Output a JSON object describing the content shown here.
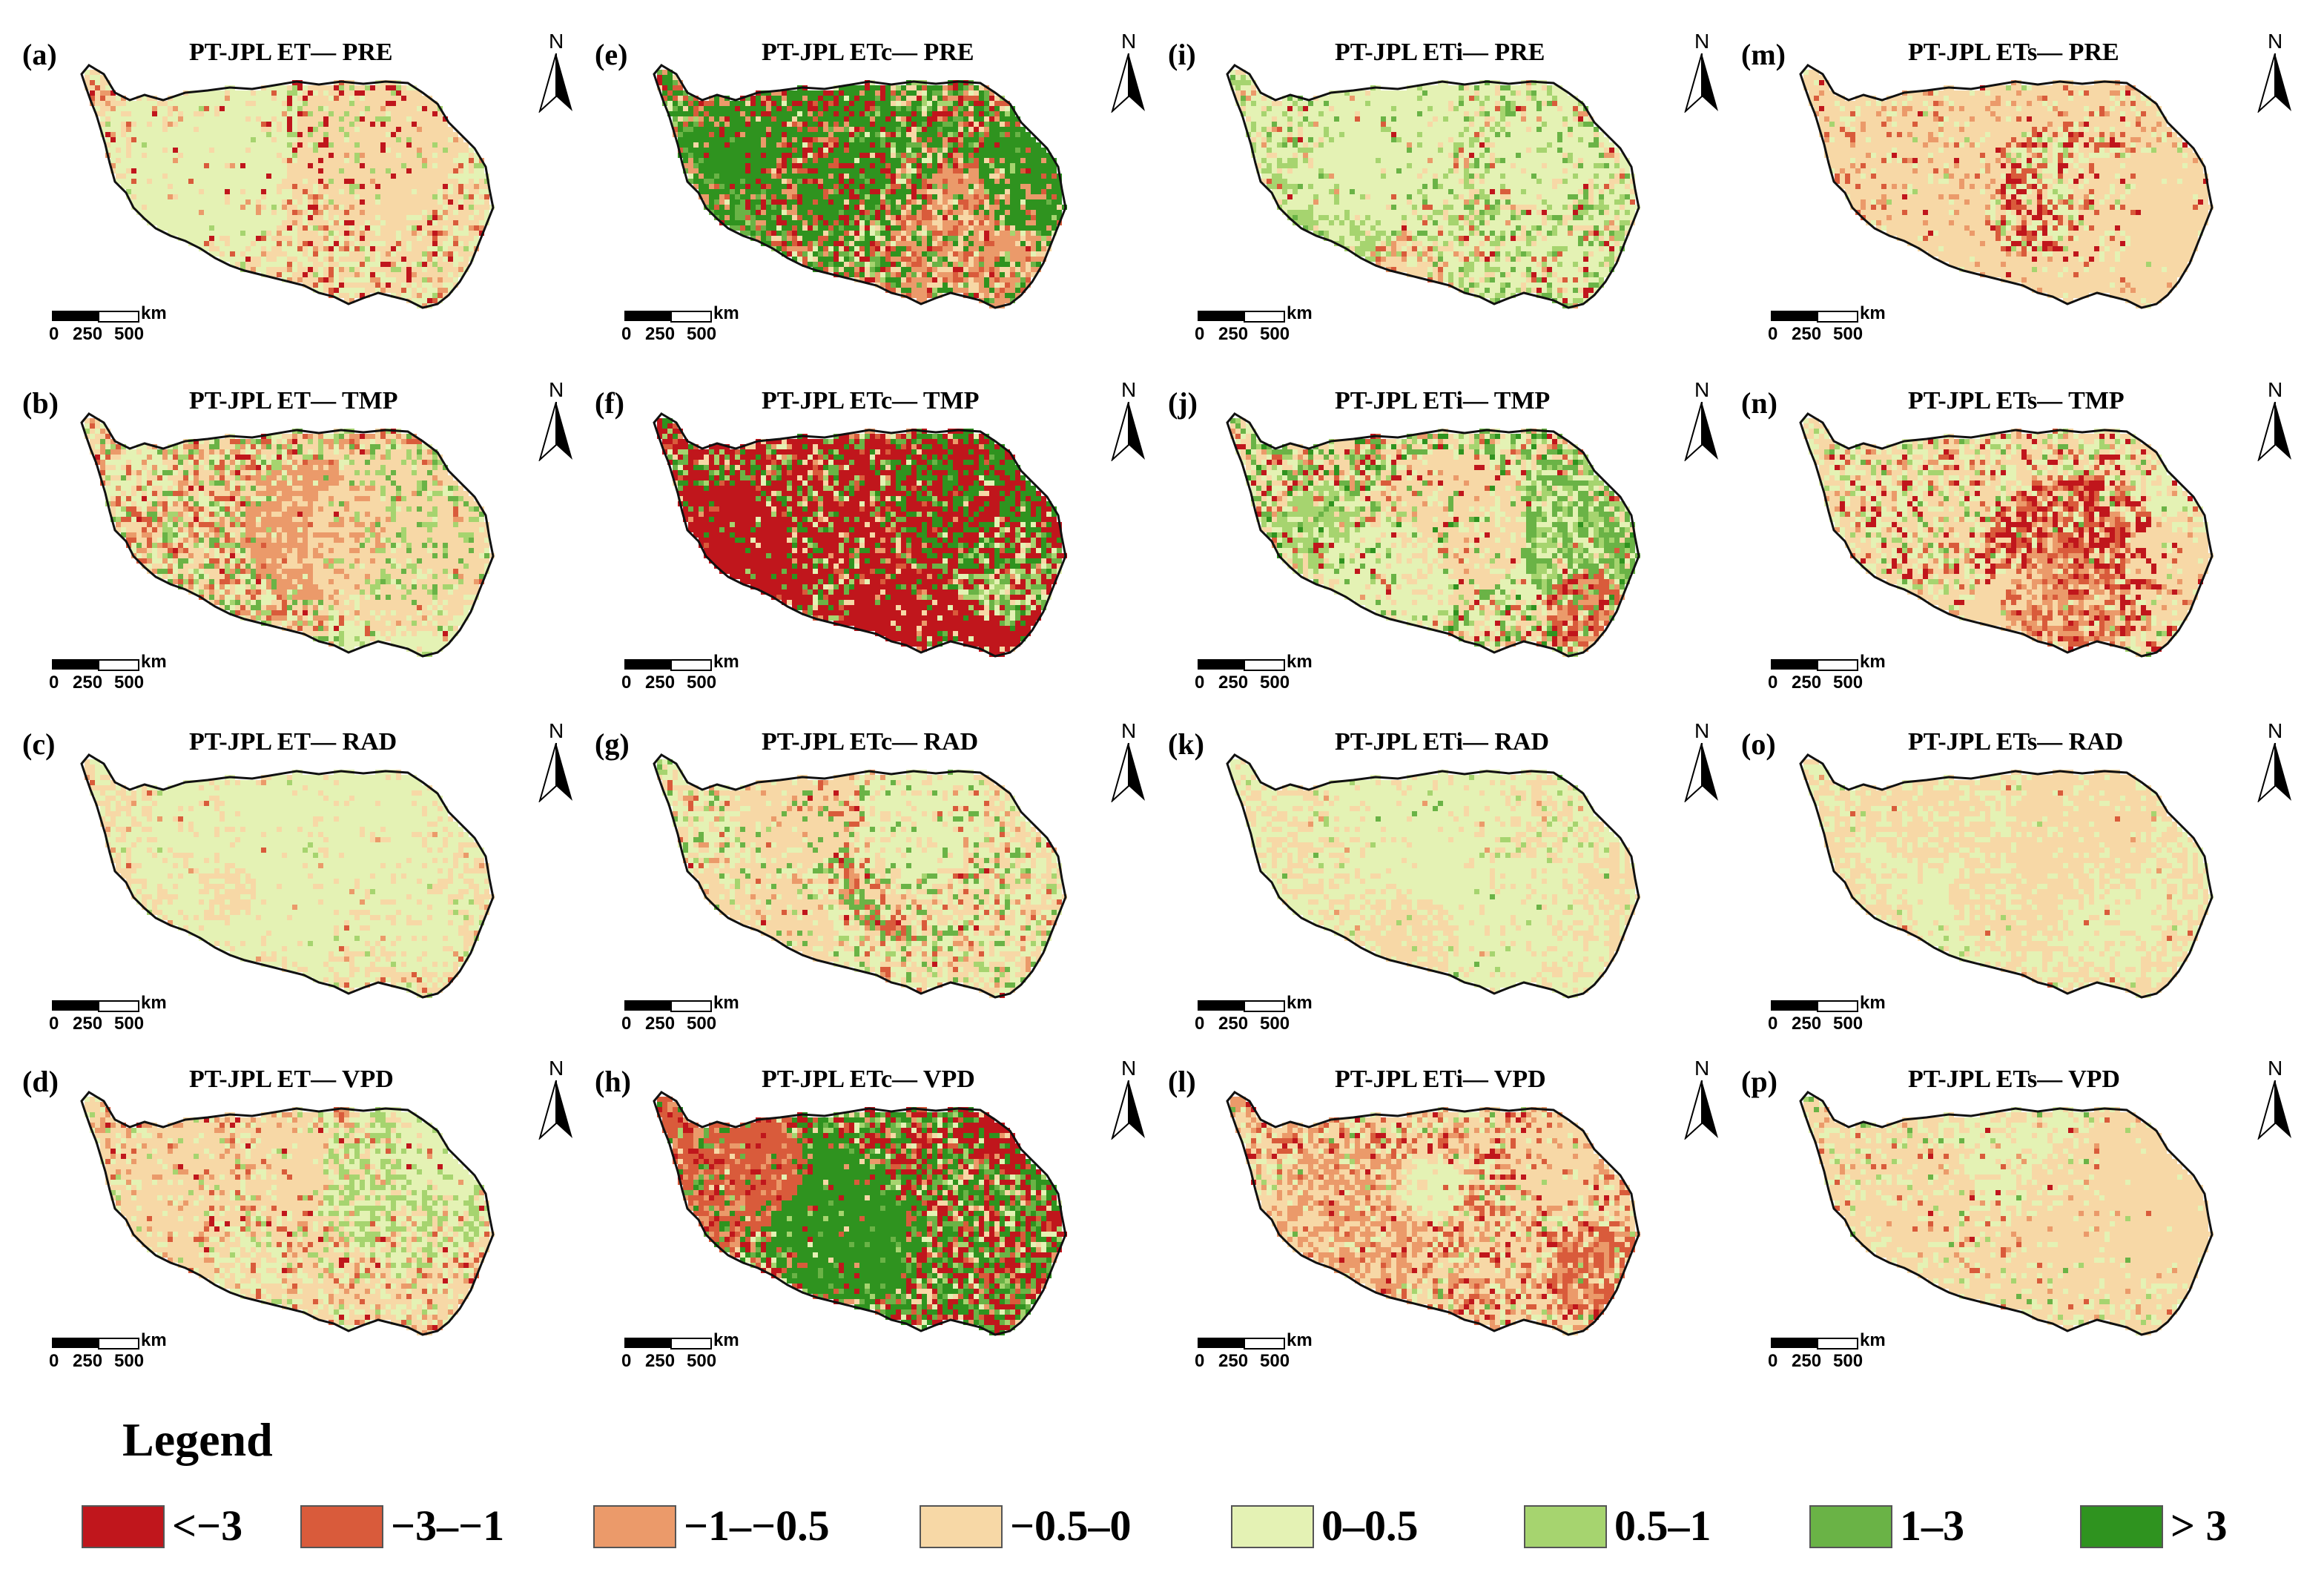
{
  "panels": [
    {
      "label": "(a)",
      "title": "PT-JPL ET— PRE",
      "scheme": [
        0.05,
        0.05,
        0.08,
        0.45,
        0.32,
        0.05,
        0.0,
        0.0
      ]
    },
    {
      "label": "(b)",
      "title": "PT-JPL ET— TMP",
      "scheme": [
        0.03,
        0.12,
        0.18,
        0.3,
        0.17,
        0.1,
        0.1,
        0.0
      ]
    },
    {
      "label": "(c)",
      "title": "PT-JPL ET— RAD",
      "scheme": [
        0.0,
        0.01,
        0.02,
        0.45,
        0.5,
        0.02,
        0.0,
        0.0
      ]
    },
    {
      "label": "(d)",
      "title": "PT-JPL ET— VPD",
      "scheme": [
        0.02,
        0.05,
        0.12,
        0.55,
        0.2,
        0.06,
        0.0,
        0.0
      ]
    },
    {
      "label": "(e)",
      "title": "PT-JPL ETc— PRE",
      "scheme": [
        0.1,
        0.15,
        0.08,
        0.1,
        0.05,
        0.05,
        0.12,
        0.35
      ]
    },
    {
      "label": "(f)",
      "title": "PT-JPL ETc— TMP",
      "scheme": [
        0.6,
        0.05,
        0.03,
        0.05,
        0.03,
        0.04,
        0.08,
        0.12
      ]
    },
    {
      "label": "(g)",
      "title": "PT-JPL ETc— RAD",
      "scheme": [
        0.01,
        0.03,
        0.08,
        0.38,
        0.38,
        0.05,
        0.07,
        0.0
      ]
    },
    {
      "label": "(h)",
      "title": "PT-JPL ETc— VPD",
      "scheme": [
        0.28,
        0.1,
        0.05,
        0.05,
        0.05,
        0.05,
        0.14,
        0.28
      ]
    },
    {
      "label": "(i)",
      "title": "PT-JPL ETi— PRE",
      "scheme": [
        0.02,
        0.02,
        0.03,
        0.12,
        0.55,
        0.16,
        0.1,
        0.0
      ]
    },
    {
      "label": "(j)",
      "title": "PT-JPL ETi— TMP",
      "scheme": [
        0.06,
        0.06,
        0.06,
        0.28,
        0.24,
        0.1,
        0.15,
        0.05
      ]
    },
    {
      "label": "(k)",
      "title": "PT-JPL ETi— RAD",
      "scheme": [
        0.0,
        0.0,
        0.01,
        0.35,
        0.6,
        0.03,
        0.01,
        0.0
      ]
    },
    {
      "label": "(l)",
      "title": "PT-JPL ETi— VPD",
      "scheme": [
        0.06,
        0.12,
        0.18,
        0.45,
        0.15,
        0.03,
        0.01,
        0.0
      ]
    },
    {
      "label": "(m)",
      "title": "PT-JPL ETs— PRE",
      "scheme": [
        0.02,
        0.04,
        0.08,
        0.75,
        0.1,
        0.01,
        0.0,
        0.0
      ]
    },
    {
      "label": "(n)",
      "title": "PT-JPL ETs— TMP",
      "scheme": [
        0.06,
        0.04,
        0.06,
        0.45,
        0.28,
        0.08,
        0.03,
        0.0
      ]
    },
    {
      "label": "(o)",
      "title": "PT-JPL ETs— RAD",
      "scheme": [
        0.0,
        0.01,
        0.01,
        0.55,
        0.42,
        0.01,
        0.0,
        0.0
      ]
    },
    {
      "label": "(p)",
      "title": "PT-JPL ETs— VPD",
      "scheme": [
        0.01,
        0.02,
        0.03,
        0.7,
        0.2,
        0.03,
        0.01,
        0.0
      ]
    }
  ],
  "north_label": "N",
  "scale_bar": {
    "unit": "km",
    "ticks": [
      "0",
      "250",
      "500"
    ]
  },
  "legend": {
    "title": "Legend",
    "items": [
      {
        "label": "<−3",
        "color": "#c0161c"
      },
      {
        "label": "−3–−1",
        "color": "#d95b3b"
      },
      {
        "label": "−1–−0.5",
        "color": "#eb9a6a"
      },
      {
        "label": "−0.5–0",
        "color": "#f7d8a6"
      },
      {
        "label": "0–0.5",
        "color": "#e4f2b4"
      },
      {
        "label": "0.5–1",
        "color": "#a6d46f"
      },
      {
        "label": "1–3",
        "color": "#6ab346"
      },
      {
        "label": "> 3",
        "color": "#2f931f"
      }
    ]
  }
}
